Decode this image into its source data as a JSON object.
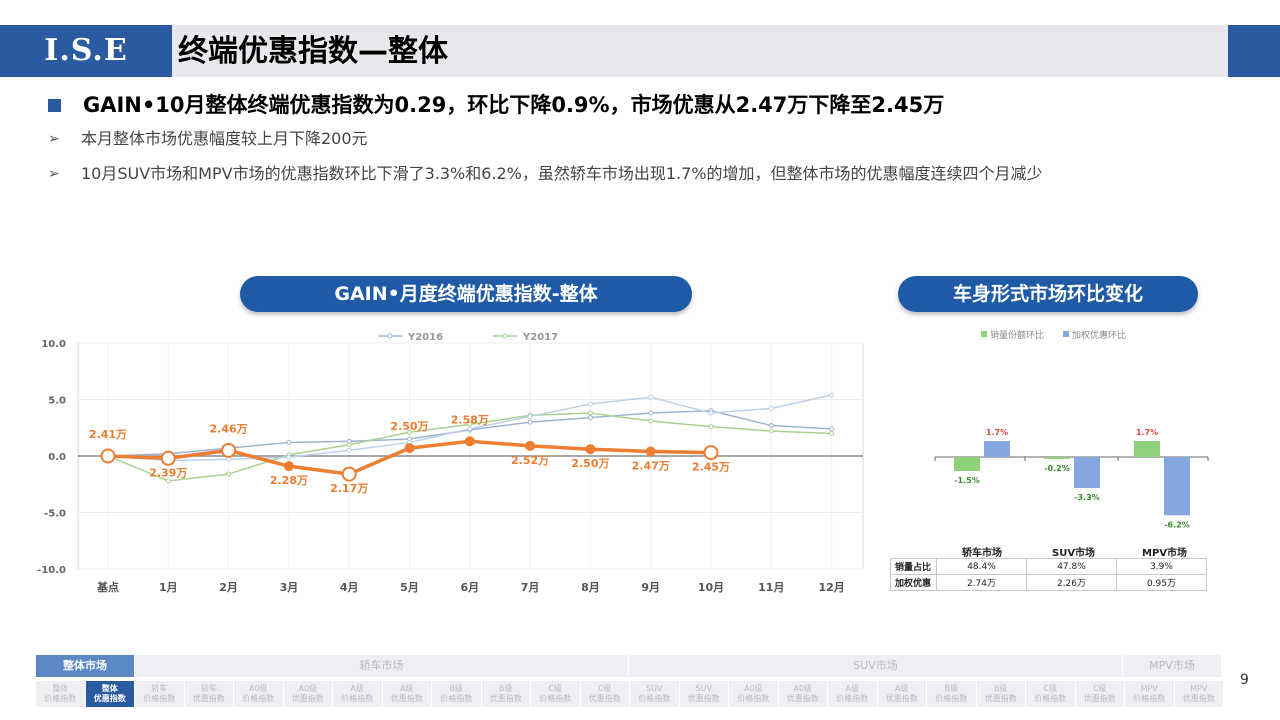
{
  "header": {
    "logo_text": "I.S.E",
    "title": "终端优惠指数—整体"
  },
  "headline": "GAIN•10月整体终端优惠指数为0.29，环比下降0.9%，市场优惠从2.47万下降至2.45万",
  "bullets": [
    "本月整体市场优惠幅度较上月下降200元",
    "10月SUV市场和MPV市场的优惠指数环比下滑了3.3%和6.2%，虽然轿车市场出现1.7%的增加，但整体市场的优惠幅度连续四个月减少"
  ],
  "colors": {
    "accent": "#2a5ba0",
    "line_2018": "#ed7d31",
    "y2016": "#9fb4d3",
    "y2017": "#a9d18e",
    "bar_green": "#8fd17a",
    "bar_blue": "#86a8e0",
    "neg_label": "#3a8a2e",
    "pos_label": "#e0473a"
  },
  "chart_data": [
    {
      "type": "line",
      "title": "GAIN•月度终端优惠指数-整体",
      "categories": [
        "基点",
        "1月",
        "2月",
        "3月",
        "4月",
        "5月",
        "6月",
        "7月",
        "8月",
        "9月",
        "10月",
        "11月",
        "12月"
      ],
      "ylim": [
        -10,
        10
      ],
      "yticks": [
        "10.0",
        "5.0",
        "0.0",
        "-5.0",
        "-10.0"
      ],
      "legend_position": "top",
      "series": [
        {
          "name": "Y2016",
          "values": [
            0,
            0.2,
            0.7,
            1.2,
            1.3,
            1.5,
            2.3,
            3.0,
            3.4,
            3.8,
            4.0,
            2.7,
            2.4
          ]
        },
        {
          "name": "Y2017",
          "values": [
            0,
            -2.2,
            -1.6,
            0.1,
            1.0,
            2.1,
            2.8,
            3.6,
            3.8,
            3.1,
            2.6,
            2.2,
            2.0
          ]
        },
        {
          "name": "",
          "values": [
            0,
            -0.2,
            0.5,
            -0.9,
            -1.6,
            0.7,
            1.3,
            0.9,
            0.6,
            0.4,
            0.3,
            null,
            null
          ],
          "data_labels": [
            "2.41万",
            "2.39万",
            "2.46万",
            "2.28万",
            "2.17万",
            "2.50万",
            "2.58万",
            "2.52万",
            "2.50万",
            "2.47万",
            "2.45万"
          ]
        },
        {
          "name": "",
          "values": [
            0,
            -0.4,
            -0.3,
            -0.1,
            0.5,
            1.2,
            2.4,
            3.5,
            4.6,
            5.2,
            3.8,
            4.2,
            5.4
          ]
        }
      ]
    },
    {
      "type": "bar",
      "title": "车身形式市场环比变化",
      "categories": [
        "轿车市场",
        "SUV市场",
        "MPV市场"
      ],
      "legend_position": "top",
      "series": [
        {
          "name": "销量份额环比",
          "values": [
            -1.5,
            -0.2,
            1.7
          ],
          "labels": [
            "-1.5%",
            "-0.2%",
            "1.7%"
          ]
        },
        {
          "name": "加权优惠环比",
          "values": [
            1.7,
            -3.3,
            -6.2
          ],
          "labels": [
            "1.7%",
            "-3.3%",
            "-6.2%"
          ]
        }
      ],
      "table": {
        "rows": [
          {
            "label": "销量占比",
            "values": [
              "48.4%",
              "47.8%",
              "3.9%"
            ]
          },
          {
            "label": "加权优惠",
            "values": [
              "2.74万",
              "2.26万",
              "0.95万"
            ]
          }
        ]
      }
    }
  ],
  "nav": {
    "row1": [
      {
        "label": "整体市场",
        "active": true
      },
      {
        "label": "轿车市场",
        "active": false
      },
      {
        "label": "SUV市场",
        "active": false
      },
      {
        "label": "MPV市场",
        "active": false
      }
    ],
    "row2": [
      {
        "label": "整体\n价格指数",
        "active": false
      },
      {
        "label": "整体\n优惠指数",
        "active": true
      },
      {
        "label": "轿车\n价格指数",
        "active": false
      },
      {
        "label": "轿车\n优惠指数",
        "active": false
      },
      {
        "label": "A0级\n价格指数",
        "active": false
      },
      {
        "label": "A0级\n优惠指数",
        "active": false
      },
      {
        "label": "A级\n价格指数",
        "active": false
      },
      {
        "label": "A级\n优惠指数",
        "active": false
      },
      {
        "label": "B级\n价格指数",
        "active": false
      },
      {
        "label": "B级\n优惠指数",
        "active": false
      },
      {
        "label": "C级\n价格指数",
        "active": false
      },
      {
        "label": "C级\n优惠指数",
        "active": false
      },
      {
        "label": "SUV\n价格指数",
        "active": false
      },
      {
        "label": "SUV\n优惠指数",
        "active": false
      },
      {
        "label": "A0级\n价格指数",
        "active": false
      },
      {
        "label": "A0级\n优惠指数",
        "active": false
      },
      {
        "label": "A级\n价格指数",
        "active": false
      },
      {
        "label": "A级\n优惠指数",
        "active": false
      },
      {
        "label": "B级\n价格指数",
        "active": false
      },
      {
        "label": "B级\n优惠指数",
        "active": false
      },
      {
        "label": "C级\n价格指数",
        "active": false
      },
      {
        "label": "C级\n优惠指数",
        "active": false
      },
      {
        "label": "MPV\n价格指数",
        "active": false
      },
      {
        "label": "MPV\n优惠指数",
        "active": false
      }
    ]
  },
  "page_number": "9"
}
